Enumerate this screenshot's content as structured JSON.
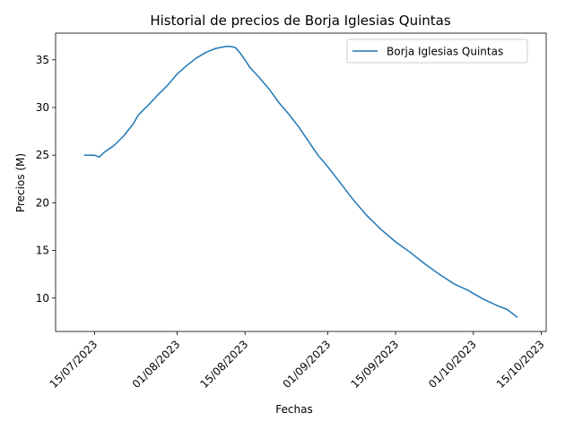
{
  "chart_data": {
    "type": "line",
    "title": "Historial de precios de Borja Iglesias Quintas",
    "xlabel": "Fechas",
    "ylabel": "Precios (M)",
    "grid": false,
    "legend_position": "upper right",
    "xlim": [
      "2023-07-07",
      "2023-10-16"
    ],
    "ylim": [
      6.5,
      37.8
    ],
    "x_ticks": [
      {
        "value": "2023-07-15",
        "label": "15/07/2023"
      },
      {
        "value": "2023-08-01",
        "label": "01/08/2023"
      },
      {
        "value": "2023-08-15",
        "label": "15/08/2023"
      },
      {
        "value": "2023-09-01",
        "label": "01/09/2023"
      },
      {
        "value": "2023-09-15",
        "label": "15/09/2023"
      },
      {
        "value": "2023-10-01",
        "label": "01/10/2023"
      },
      {
        "value": "2023-10-15",
        "label": "15/10/2023"
      }
    ],
    "y_ticks": [
      10,
      15,
      20,
      25,
      30,
      35
    ],
    "series": [
      {
        "name": "Borja Iglesias Quintas",
        "color": "#1f77b4",
        "x": [
          "2023-07-13",
          "2023-07-15",
          "2023-07-16",
          "2023-07-17",
          "2023-07-19",
          "2023-07-21",
          "2023-07-23",
          "2023-07-24",
          "2023-07-25",
          "2023-07-26",
          "2023-07-28",
          "2023-07-30",
          "2023-08-01",
          "2023-08-03",
          "2023-08-05",
          "2023-08-07",
          "2023-08-09",
          "2023-08-11",
          "2023-08-12",
          "2023-08-13",
          "2023-08-14",
          "2023-08-15",
          "2023-08-16",
          "2023-08-18",
          "2023-08-20",
          "2023-08-22",
          "2023-08-24",
          "2023-08-26",
          "2023-08-28",
          "2023-08-30",
          "2023-09-01",
          "2023-09-03",
          "2023-09-06",
          "2023-09-09",
          "2023-09-12",
          "2023-09-15",
          "2023-09-18",
          "2023-09-21",
          "2023-09-24",
          "2023-09-27",
          "2023-09-30",
          "2023-10-03",
          "2023-10-06",
          "2023-10-08",
          "2023-10-10"
        ],
        "y": [
          25.0,
          25.0,
          24.8,
          25.3,
          26.0,
          27.0,
          28.3,
          29.2,
          29.7,
          30.2,
          31.3,
          32.3,
          33.5,
          34.4,
          35.2,
          35.8,
          36.2,
          36.4,
          36.4,
          36.3,
          35.7,
          35.0,
          34.2,
          33.1,
          31.9,
          30.5,
          29.3,
          28.0,
          26.5,
          25.0,
          23.8,
          22.5,
          20.5,
          18.7,
          17.2,
          15.9,
          14.8,
          13.6,
          12.5,
          11.5,
          10.8,
          9.9,
          9.2,
          8.8,
          8.0
        ]
      }
    ]
  }
}
